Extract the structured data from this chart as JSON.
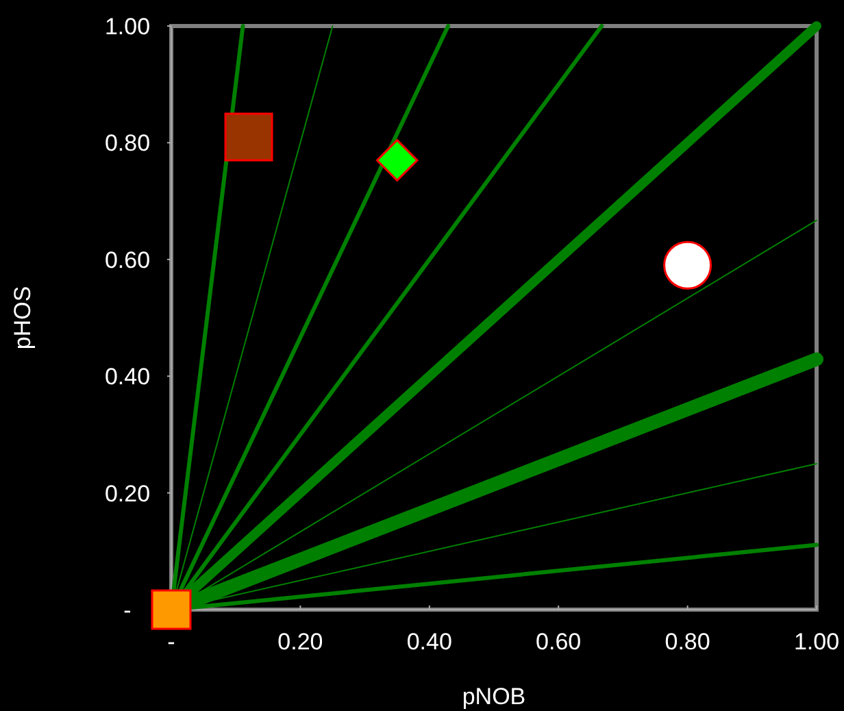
{
  "chart_data": {
    "type": "line",
    "xlabel": "pNOB",
    "ylabel": "pHOS",
    "xlim": [
      0,
      1
    ],
    "ylim": [
      0,
      1
    ],
    "xticks": [
      {
        "value": 0,
        "label": "-"
      },
      {
        "value": 0.2,
        "label": "0.20"
      },
      {
        "value": 0.4,
        "label": "0.40"
      },
      {
        "value": 0.6,
        "label": "0.60"
      },
      {
        "value": 0.8,
        "label": "0.80"
      },
      {
        "value": 1,
        "label": "1.00"
      }
    ],
    "yticks": [
      {
        "value": 0,
        "label": "-"
      },
      {
        "value": 0.2,
        "label": "0.20"
      },
      {
        "value": 0.4,
        "label": "0.40"
      },
      {
        "value": 0.6,
        "label": "0.60"
      },
      {
        "value": 0.8,
        "label": "0.80"
      },
      {
        "value": 1,
        "label": "1.00"
      }
    ],
    "series": [
      {
        "color": "#008000",
        "x": [
          0,
          0.111
        ],
        "values": [
          0,
          1
        ]
      },
      {
        "color": "#008000",
        "x": [
          0,
          0.25
        ],
        "values": [
          0,
          1
        ]
      },
      {
        "color": "#008000",
        "x": [
          0,
          0.429
        ],
        "values": [
          0,
          1
        ]
      },
      {
        "color": "#008000",
        "x": [
          0,
          0.667
        ],
        "values": [
          0,
          1
        ]
      },
      {
        "color": "#008000",
        "x": [
          0,
          1
        ],
        "values": [
          0,
          1
        ]
      },
      {
        "color": "#008000",
        "x": [
          0,
          1
        ],
        "values": [
          0,
          0.667
        ]
      },
      {
        "color": "#008000",
        "x": [
          0,
          1
        ],
        "values": [
          0,
          0.429
        ]
      },
      {
        "color": "#008000",
        "x": [
          0,
          1
        ],
        "values": [
          0,
          0.25
        ]
      },
      {
        "color": "#008000",
        "x": [
          0,
          1
        ],
        "values": [
          0,
          0.111
        ]
      },
      {
        "type": "scatter",
        "marker": "square",
        "color": "#993300",
        "x": [
          0.12
        ],
        "values": [
          0.81
        ]
      },
      {
        "type": "scatter",
        "marker": "diamond",
        "color": "#00ff00",
        "x": [
          0.35
        ],
        "values": [
          0.77
        ]
      },
      {
        "type": "scatter",
        "marker": "circle",
        "color": "#ffffff",
        "x": [
          0.8
        ],
        "values": [
          0.59
        ]
      },
      {
        "type": "scatter",
        "marker": "square",
        "color": "#ff9900",
        "x": [
          0
        ],
        "values": [
          0
        ]
      }
    ]
  }
}
